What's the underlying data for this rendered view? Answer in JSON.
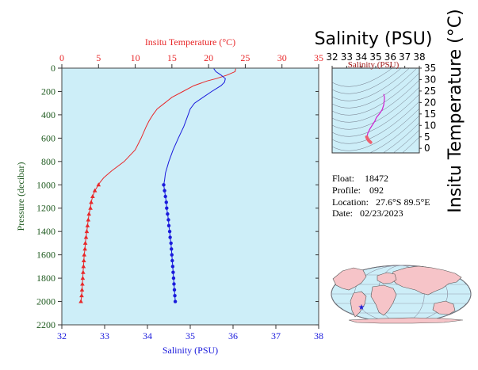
{
  "colors": {
    "panel_bg": "#cdeef8",
    "temperature": "#e8282a",
    "salinity": "#1a1adc",
    "pressure_axis": "#1f5a1f",
    "inset_curve": "#d020d0",
    "inset_curve_deep": "#ee6070",
    "land": "#f6c4c8",
    "ocean": "#cdeef8"
  },
  "chart_data": [
    {
      "type": "line",
      "title": "",
      "top_axis_label": "Insitu Temperature (°C)",
      "xlabel": "Salinity (PSU)",
      "ylabel": "Pressure (decibar)",
      "temperature_range": [
        0,
        35
      ],
      "salinity_range": [
        32,
        38
      ],
      "pressure_range": [
        0,
        2200
      ],
      "pressure_inverted": true,
      "grid": false,
      "temperature_ticks": [
        "0",
        "5",
        "10",
        "15",
        "20",
        "25",
        "30",
        "35"
      ],
      "salinity_ticks": [
        "32",
        "33",
        "34",
        "35",
        "36",
        "37",
        "38"
      ],
      "pressure_ticks": [
        "0",
        "200",
        "400",
        "600",
        "800",
        "1000",
        "1200",
        "1400",
        "1600",
        "1800",
        "2000",
        "2200"
      ],
      "series": [
        {
          "variable": "temperature",
          "points": [
            {
              "p": 5,
              "v": 23.7
            },
            {
              "p": 30,
              "v": 23.6
            },
            {
              "p": 60,
              "v": 22.5
            },
            {
              "p": 90,
              "v": 21.0
            },
            {
              "p": 110,
              "v": 19.8
            },
            {
              "p": 150,
              "v": 18.0
            },
            {
              "p": 200,
              "v": 16.5
            },
            {
              "p": 250,
              "v": 15.0
            },
            {
              "p": 300,
              "v": 14.0
            },
            {
              "p": 350,
              "v": 13.0
            },
            {
              "p": 400,
              "v": 12.4
            },
            {
              "p": 450,
              "v": 11.9
            },
            {
              "p": 500,
              "v": 11.5
            },
            {
              "p": 600,
              "v": 10.8
            },
            {
              "p": 700,
              "v": 10.0
            },
            {
              "p": 800,
              "v": 8.5
            },
            {
              "p": 880,
              "v": 6.8
            },
            {
              "p": 940,
              "v": 5.7
            },
            {
              "p": 980,
              "v": 5.2
            }
          ],
          "markers": [
            {
              "p": 1000,
              "v": 5.0
            },
            {
              "p": 1050,
              "v": 4.5
            },
            {
              "p": 1100,
              "v": 4.2
            },
            {
              "p": 1150,
              "v": 4.0
            },
            {
              "p": 1200,
              "v": 3.9
            },
            {
              "p": 1250,
              "v": 3.7
            },
            {
              "p": 1300,
              "v": 3.6
            },
            {
              "p": 1350,
              "v": 3.5
            },
            {
              "p": 1400,
              "v": 3.4
            },
            {
              "p": 1450,
              "v": 3.3
            },
            {
              "p": 1500,
              "v": 3.2
            },
            {
              "p": 1550,
              "v": 3.15
            },
            {
              "p": 1600,
              "v": 3.05
            },
            {
              "p": 1650,
              "v": 3.0
            },
            {
              "p": 1700,
              "v": 2.95
            },
            {
              "p": 1750,
              "v": 2.9
            },
            {
              "p": 1800,
              "v": 2.85
            },
            {
              "p": 1850,
              "v": 2.8
            },
            {
              "p": 1900,
              "v": 2.75
            },
            {
              "p": 1950,
              "v": 2.7
            },
            {
              "p": 2000,
              "v": 2.6
            }
          ]
        },
        {
          "variable": "salinity",
          "points": [
            {
              "p": 5,
              "v": 35.55
            },
            {
              "p": 30,
              "v": 35.6
            },
            {
              "p": 60,
              "v": 35.72
            },
            {
              "p": 90,
              "v": 35.82
            },
            {
              "p": 120,
              "v": 35.8
            },
            {
              "p": 150,
              "v": 35.72
            },
            {
              "p": 200,
              "v": 35.5
            },
            {
              "p": 250,
              "v": 35.3
            },
            {
              "p": 300,
              "v": 35.1
            },
            {
              "p": 350,
              "v": 35.0
            },
            {
              "p": 400,
              "v": 34.95
            },
            {
              "p": 500,
              "v": 34.85
            },
            {
              "p": 600,
              "v": 34.72
            },
            {
              "p": 700,
              "v": 34.6
            },
            {
              "p": 800,
              "v": 34.5
            },
            {
              "p": 900,
              "v": 34.42
            },
            {
              "p": 960,
              "v": 34.4
            }
          ],
          "markers": [
            {
              "p": 1000,
              "v": 34.38
            },
            {
              "p": 1050,
              "v": 34.4
            },
            {
              "p": 1100,
              "v": 34.42
            },
            {
              "p": 1150,
              "v": 34.44
            },
            {
              "p": 1200,
              "v": 34.45
            },
            {
              "p": 1250,
              "v": 34.47
            },
            {
              "p": 1300,
              "v": 34.49
            },
            {
              "p": 1350,
              "v": 34.5
            },
            {
              "p": 1400,
              "v": 34.52
            },
            {
              "p": 1450,
              "v": 34.53
            },
            {
              "p": 1500,
              "v": 34.55
            },
            {
              "p": 1550,
              "v": 34.56
            },
            {
              "p": 1600,
              "v": 34.57
            },
            {
              "p": 1650,
              "v": 34.58
            },
            {
              "p": 1700,
              "v": 34.59
            },
            {
              "p": 1750,
              "v": 34.6
            },
            {
              "p": 1800,
              "v": 34.61
            },
            {
              "p": 1850,
              "v": 34.62
            },
            {
              "p": 1900,
              "v": 34.63
            },
            {
              "p": 1950,
              "v": 34.64
            },
            {
              "p": 2000,
              "v": 34.65
            }
          ]
        }
      ]
    },
    {
      "type": "line",
      "title": "Salinity (PSU)",
      "top_axis_label": "Salinity (PSU)",
      "ylabel": "Insitu Temperature (°C)",
      "xlim": [
        32,
        38
      ],
      "ylim": [
        -2,
        35
      ],
      "x_ticks": [
        "32",
        "33",
        "34",
        "35",
        "36",
        "37",
        "38"
      ],
      "y_ticks": [
        "0",
        "5",
        "10",
        "15",
        "20",
        "25",
        "30",
        "35"
      ],
      "series": [
        {
          "points": [
            {
              "s": 35.55,
              "t": 23.7
            },
            {
              "s": 35.6,
              "t": 22.0
            },
            {
              "s": 35.55,
              "t": 19.0
            },
            {
              "s": 35.45,
              "t": 17.0
            },
            {
              "s": 35.25,
              "t": 15.0
            },
            {
              "s": 35.05,
              "t": 13.5
            },
            {
              "s": 34.95,
              "t": 12.0
            },
            {
              "s": 34.8,
              "t": 10.5
            },
            {
              "s": 34.6,
              "t": 8.5
            },
            {
              "s": 34.45,
              "t": 6.5
            },
            {
              "s": 34.4,
              "t": 5.0
            }
          ],
          "deep_points": [
            {
              "s": 34.38,
              "t": 5.0
            },
            {
              "s": 34.45,
              "t": 4.0
            },
            {
              "s": 34.52,
              "t": 3.4
            },
            {
              "s": 34.58,
              "t": 3.0
            },
            {
              "s": 34.65,
              "t": 2.6
            }
          ]
        }
      ]
    }
  ],
  "info": {
    "float_label": "Float:",
    "float_value": "18472",
    "profile_label": "Profile:",
    "profile_value": "092",
    "location_label": "Location:",
    "location_value": "27.6°S  89.5°E",
    "date_label": "Date:",
    "date_value": "02/23/2023"
  },
  "map": {
    "marker": "float-location-star"
  }
}
